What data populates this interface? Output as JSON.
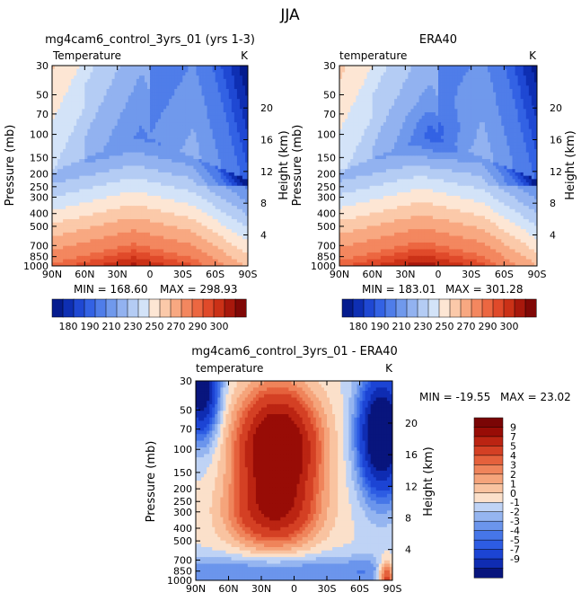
{
  "page_title": "JJA",
  "palette_abs": [
    "#051c8e",
    "#0e2fb3",
    "#1f48d3",
    "#3362e4",
    "#4f7de9",
    "#7099ec",
    "#92b2f0",
    "#b4ccf4",
    "#d3e3f8",
    "#fde6d4",
    "#fbc9a9",
    "#f8a881",
    "#f3875f",
    "#ec6741",
    "#e04a2a",
    "#cb3117",
    "#a8180c",
    "#800806"
  ],
  "palette_diff": [
    "#08157d",
    "#0f2cb2",
    "#1c44d4",
    "#2d5ce3",
    "#4676e8",
    "#6b95ec",
    "#95b5f0",
    "#bfd3f5",
    "#fbe0ca",
    "#f9c3a0",
    "#f5a47b",
    "#ef845b",
    "#e5613c",
    "#d44024",
    "#bb2412",
    "#980c06",
    "#7a0505"
  ],
  "chart_data": [
    {
      "id": "model",
      "type": "contour",
      "title": "mg4cam6_control_3yrs_01 (yrs 1-3)",
      "left_label": "Temperature",
      "right_label": "K",
      "ylabel": "Pressure (mb)",
      "y2label": "Height (km)",
      "x_ticks": [
        "90N",
        "60N",
        "30N",
        "0",
        "30S",
        "60S",
        "90S"
      ],
      "y_ticks": [
        30,
        50,
        70,
        100,
        150,
        200,
        250,
        300,
        400,
        500,
        700,
        850,
        1000
      ],
      "y2_ticks": [
        4,
        8,
        12,
        16,
        20
      ],
      "min_label": "MIN = 168.60",
      "max_label": "MAX = 298.93",
      "min": 168.6,
      "max": 298.93,
      "colorbar_labels": [
        "180",
        "190",
        "210",
        "230",
        "250",
        "270",
        "290",
        "300"
      ],
      "levels": [
        175,
        180,
        185,
        190,
        200,
        210,
        220,
        230,
        240,
        250,
        260,
        270,
        280,
        285,
        290,
        295,
        300
      ]
    },
    {
      "id": "obs",
      "type": "contour",
      "title": "ERA40",
      "left_label": "temperature",
      "right_label": "K",
      "ylabel": "Pressure (mb)",
      "y2label": "Height (km)",
      "x_ticks": [
        "90N",
        "60N",
        "30N",
        "0",
        "30S",
        "60S",
        "90S"
      ],
      "y_ticks": [
        30,
        50,
        70,
        100,
        150,
        200,
        250,
        300,
        400,
        500,
        700,
        850,
        1000
      ],
      "y2_ticks": [
        4,
        8,
        12,
        16,
        20
      ],
      "min_label": "MIN = 183.01",
      "max_label": "MAX = 301.28",
      "min": 183.01,
      "max": 301.28,
      "colorbar_labels": [
        "180",
        "190",
        "210",
        "230",
        "250",
        "270",
        "290",
        "300"
      ],
      "levels": [
        175,
        180,
        185,
        190,
        200,
        210,
        220,
        230,
        240,
        250,
        260,
        270,
        280,
        285,
        290,
        295,
        300
      ]
    },
    {
      "id": "diff",
      "type": "contour",
      "title": "mg4cam6_control_3yrs_01 - ERA40",
      "left_label": "temperature",
      "right_label": "K",
      "ylabel": "Pressure (mb)",
      "y2label": "Height (km)",
      "x_ticks": [
        "90N",
        "60N",
        "30N",
        "0",
        "30S",
        "60S",
        "90S"
      ],
      "y_ticks": [
        30,
        50,
        70,
        100,
        150,
        200,
        250,
        300,
        400,
        500,
        700,
        850,
        1000
      ],
      "y2_ticks": [
        4,
        8,
        12,
        16,
        20
      ],
      "min_label": "MIN = -19.55",
      "max_label": "MAX =  23.02",
      "min": -19.55,
      "max": 23.02,
      "colorbar_labels": [
        "9",
        "7",
        "5",
        "4",
        "3",
        "2",
        "1",
        "0",
        "-1",
        "-2",
        "-3",
        "-4",
        "-5",
        "-7",
        "-9"
      ],
      "levels": [
        -9,
        -7,
        -5,
        -4,
        -3,
        -2,
        -1,
        0,
        1,
        2,
        3,
        4,
        5,
        7,
        9
      ]
    }
  ]
}
